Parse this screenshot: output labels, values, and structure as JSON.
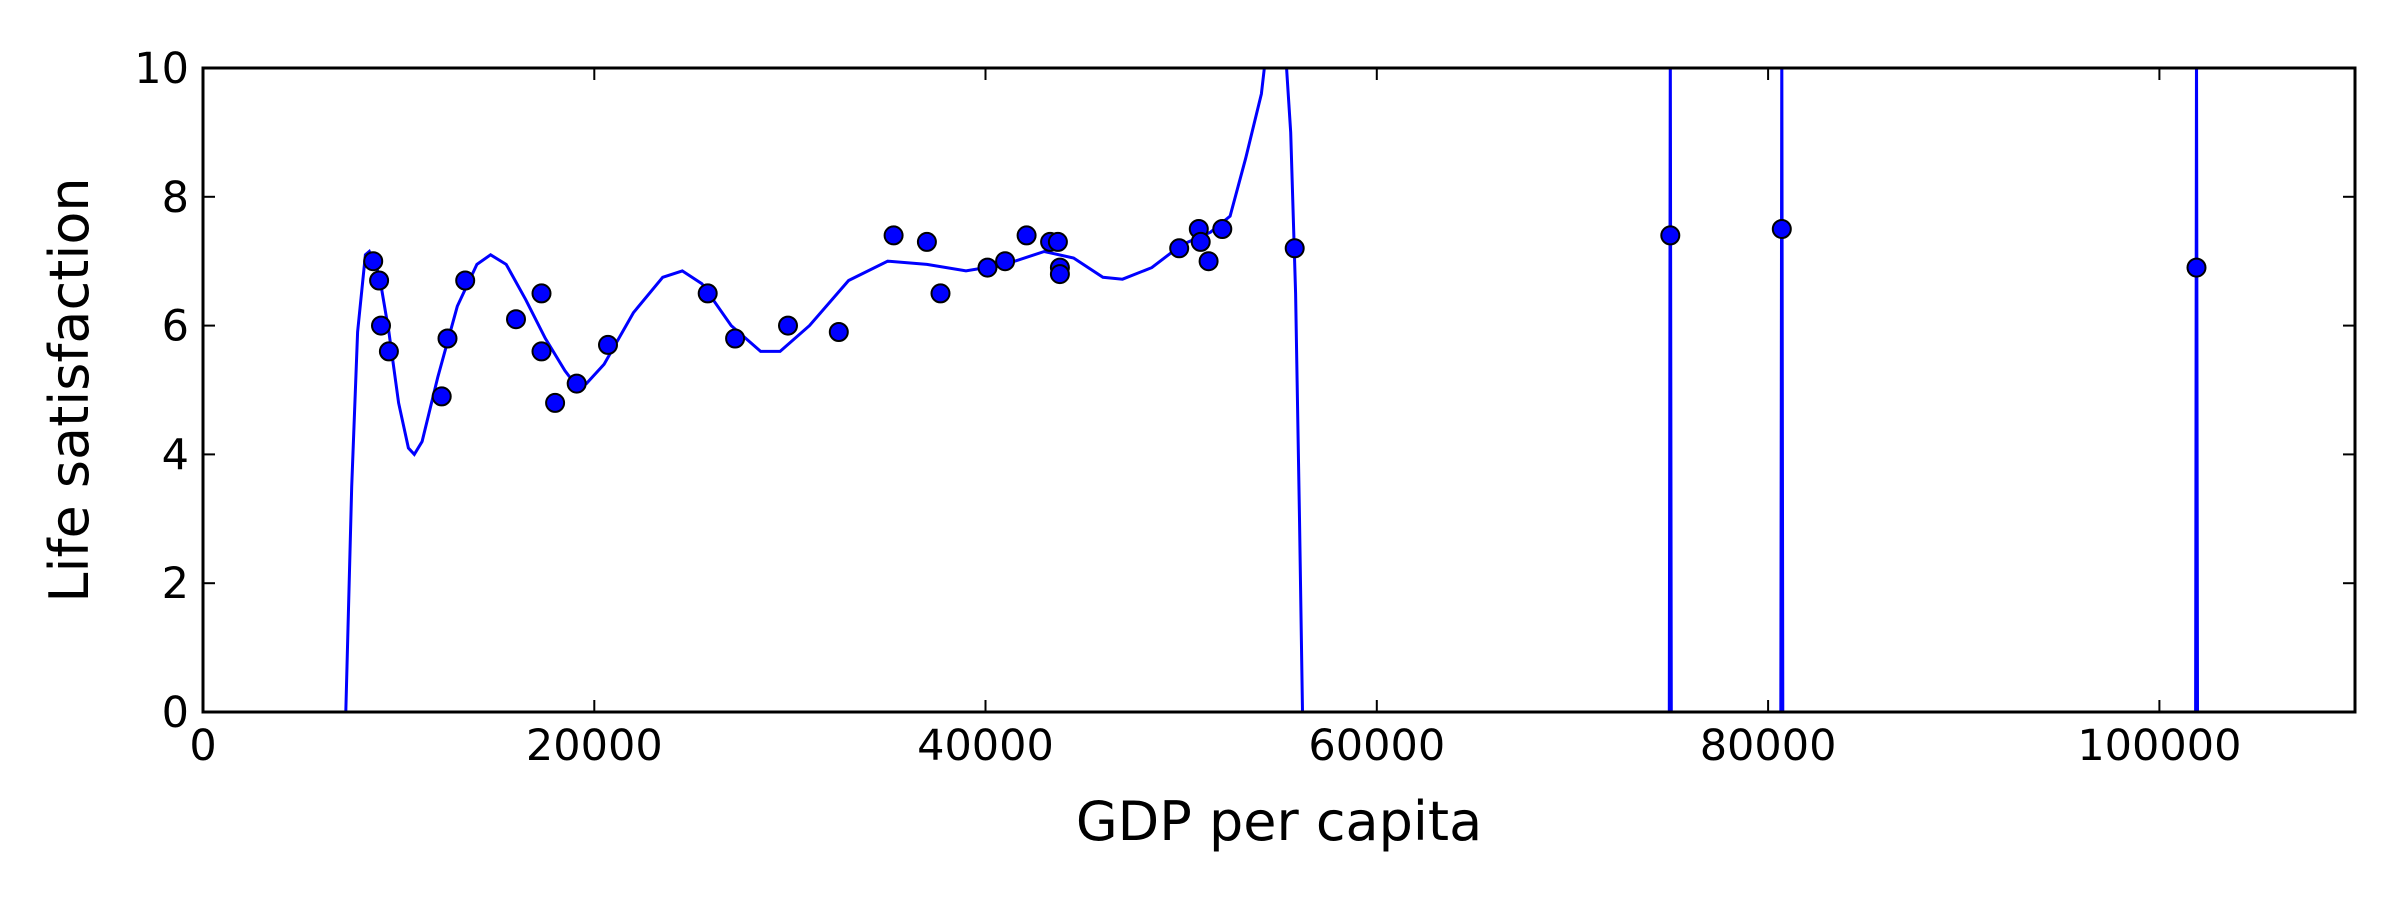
{
  "chart_data": {
    "type": "scatter",
    "xlabel": "GDP per capita",
    "ylabel": "Life satisfaction",
    "xlim": [
      0,
      110000
    ],
    "ylim": [
      0,
      10
    ],
    "xticks": [
      0,
      20000,
      40000,
      60000,
      80000,
      100000
    ],
    "xtick_labels": [
      "0",
      "20000",
      "40000",
      "60000",
      "80000",
      "100000"
    ],
    "yticks": [
      0,
      2,
      4,
      6,
      8,
      10
    ],
    "ytick_labels": [
      "0",
      "2",
      "4",
      "6",
      "8",
      "10"
    ],
    "grid": false,
    "colors": {
      "points": "#0000ff",
      "point_edge": "#000000",
      "fit_line": "#0000ff",
      "axes": "#000000"
    },
    "points": [
      [
        8700,
        7.0
      ],
      [
        9000,
        6.7
      ],
      [
        9100,
        6.0
      ],
      [
        9500,
        5.6
      ],
      [
        12200,
        4.9
      ],
      [
        12500,
        5.8
      ],
      [
        13400,
        6.7
      ],
      [
        16000,
        6.1
      ],
      [
        17300,
        6.5
      ],
      [
        17300,
        5.6
      ],
      [
        18000,
        4.8
      ],
      [
        19100,
        5.1
      ],
      [
        20700,
        5.7
      ],
      [
        25800,
        6.5
      ],
      [
        27200,
        5.8
      ],
      [
        29900,
        6.0
      ],
      [
        32500,
        5.9
      ],
      [
        35300,
        7.4
      ],
      [
        37000,
        7.3
      ],
      [
        37700,
        6.5
      ],
      [
        40100,
        6.9
      ],
      [
        41000,
        7.0
      ],
      [
        42100,
        7.4
      ],
      [
        43300,
        7.3
      ],
      [
        43700,
        7.3
      ],
      [
        43800,
        6.9
      ],
      [
        43800,
        6.8
      ],
      [
        49900,
        7.2
      ],
      [
        50900,
        7.5
      ],
      [
        51000,
        7.3
      ],
      [
        51400,
        7.0
      ],
      [
        52100,
        7.5
      ],
      [
        55800,
        7.2
      ],
      [
        75000,
        7.4
      ],
      [
        80700,
        7.5
      ],
      [
        101900,
        6.9
      ]
    ],
    "fit_curve": [
      [
        7300,
        0
      ],
      [
        7600,
        3.5
      ],
      [
        7900,
        5.9
      ],
      [
        8300,
        7.1
      ],
      [
        8500,
        7.15
      ],
      [
        9000,
        6.8
      ],
      [
        9500,
        5.9
      ],
      [
        10000,
        4.8
      ],
      [
        10500,
        4.1
      ],
      [
        10800,
        4.0
      ],
      [
        11200,
        4.2
      ],
      [
        12000,
        5.2
      ],
      [
        13000,
        6.3
      ],
      [
        14000,
        6.95
      ],
      [
        14700,
        7.1
      ],
      [
        15500,
        6.95
      ],
      [
        16500,
        6.4
      ],
      [
        17500,
        5.8
      ],
      [
        18500,
        5.3
      ],
      [
        19000,
        5.1
      ],
      [
        19600,
        5.1
      ],
      [
        20500,
        5.4
      ],
      [
        22000,
        6.2
      ],
      [
        23500,
        6.75
      ],
      [
        24500,
        6.85
      ],
      [
        25500,
        6.65
      ],
      [
        27000,
        6.0
      ],
      [
        28500,
        5.6
      ],
      [
        29500,
        5.6
      ],
      [
        31000,
        6.0
      ],
      [
        33000,
        6.7
      ],
      [
        35000,
        7.0
      ],
      [
        37000,
        6.95
      ],
      [
        39000,
        6.85
      ],
      [
        41000,
        6.95
      ],
      [
        43000,
        7.15
      ],
      [
        44500,
        7.05
      ],
      [
        46000,
        6.75
      ],
      [
        47000,
        6.72
      ],
      [
        48500,
        6.9
      ],
      [
        50000,
        7.25
      ],
      [
        51500,
        7.45
      ],
      [
        52500,
        7.7
      ],
      [
        53300,
        8.6
      ],
      [
        54100,
        9.6
      ],
      [
        54400,
        10.4
      ],
      [
        55300,
        10.4
      ],
      [
        55600,
        9.0
      ],
      [
        55850,
        6.5
      ],
      [
        56050,
        3.0
      ],
      [
        56200,
        0
      ],
      [
        74950,
        0
      ],
      [
        75000,
        10.4
      ],
      [
        75050,
        0
      ],
      [
        80650,
        0
      ],
      [
        80700,
        10.4
      ],
      [
        80750,
        0
      ],
      [
        101850,
        0
      ],
      [
        101900,
        10.4
      ],
      [
        101950,
        0
      ]
    ]
  }
}
